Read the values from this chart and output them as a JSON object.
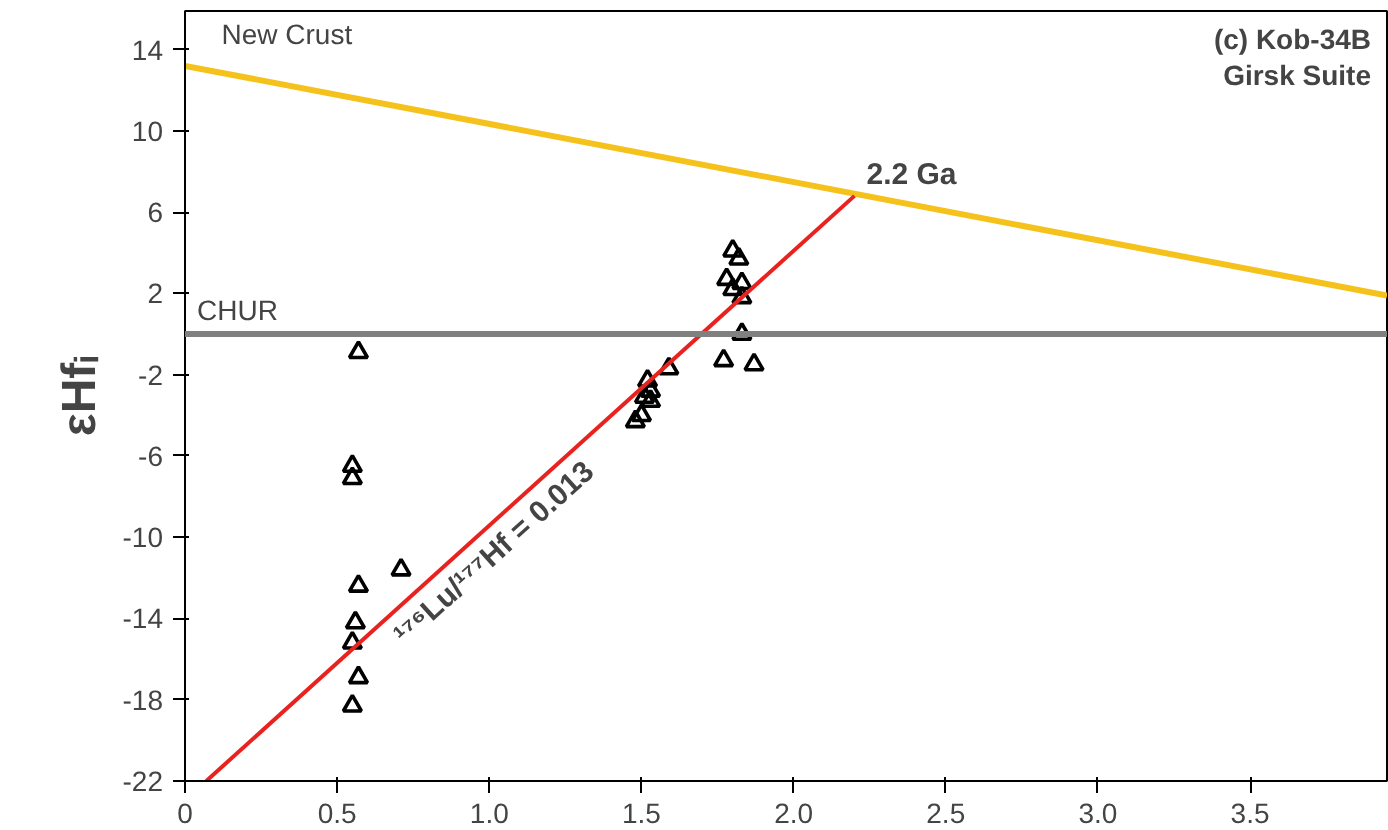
{
  "chart_data": {
    "type": "scatter",
    "title": "(c) Kob-34B",
    "subtitle": "Girsk Suite",
    "ylabel": "εHfᵢ",
    "xlim": [
      0,
      3.95
    ],
    "ylim": [
      -22,
      15.9
    ],
    "xticks": [
      0,
      0.5,
      {
        "value": 1,
        "label": "1.0"
      },
      1.5,
      {
        "value": 2,
        "label": "2.0"
      },
      2.5,
      {
        "value": 3,
        "label": "3.0"
      },
      3.5
    ],
    "yticks": [
      -22,
      -18,
      -14,
      -10,
      -6,
      -2,
      2,
      6,
      10,
      14
    ],
    "grid": false,
    "series": [
      {
        "marker": "triangle",
        "color": "#000000",
        "x": [
          0.57,
          0.55,
          0.55,
          0.57,
          0.71,
          0.56,
          0.55,
          0.57,
          0.55,
          1.8,
          1.82,
          1.78,
          1.83,
          1.8,
          1.83,
          1.83,
          1.77,
          1.87,
          1.59,
          1.52,
          1.53,
          1.51,
          1.53,
          1.5,
          1.48
        ],
        "values": [
          -0.9,
          -6.5,
          -7.1,
          -12.4,
          -11.6,
          -14.2,
          -15.2,
          -16.9,
          -18.3,
          4.1,
          3.7,
          2.7,
          2.5,
          2.2,
          1.8,
          0.0,
          -1.3,
          -1.5,
          -1.7,
          -2.3,
          -2.8,
          -3.1,
          -3.3,
          -4.0,
          -4.3
        ]
      },
      {
        "type": "line",
        "marker": "none",
        "name": "New Crust",
        "color": "#f5c11b",
        "x": [
          0,
          3.95
        ],
        "values": [
          13.2,
          1.9
        ]
      },
      {
        "type": "line",
        "marker": "none",
        "name": "¹⁷⁶Lu/¹⁷⁷Hf = 0.013",
        "color": "#e8231f",
        "x": [
          0.07,
          2.2
        ],
        "values": [
          -22,
          6.8
        ]
      }
    ],
    "ref_lines": [
      {
        "axis": "y",
        "value": 0,
        "label": "CHUR",
        "color": "#808080"
      }
    ],
    "annotations": [
      {
        "text": "2.2 Ga",
        "x": 2.2,
        "y": 6.8
      }
    ]
  }
}
